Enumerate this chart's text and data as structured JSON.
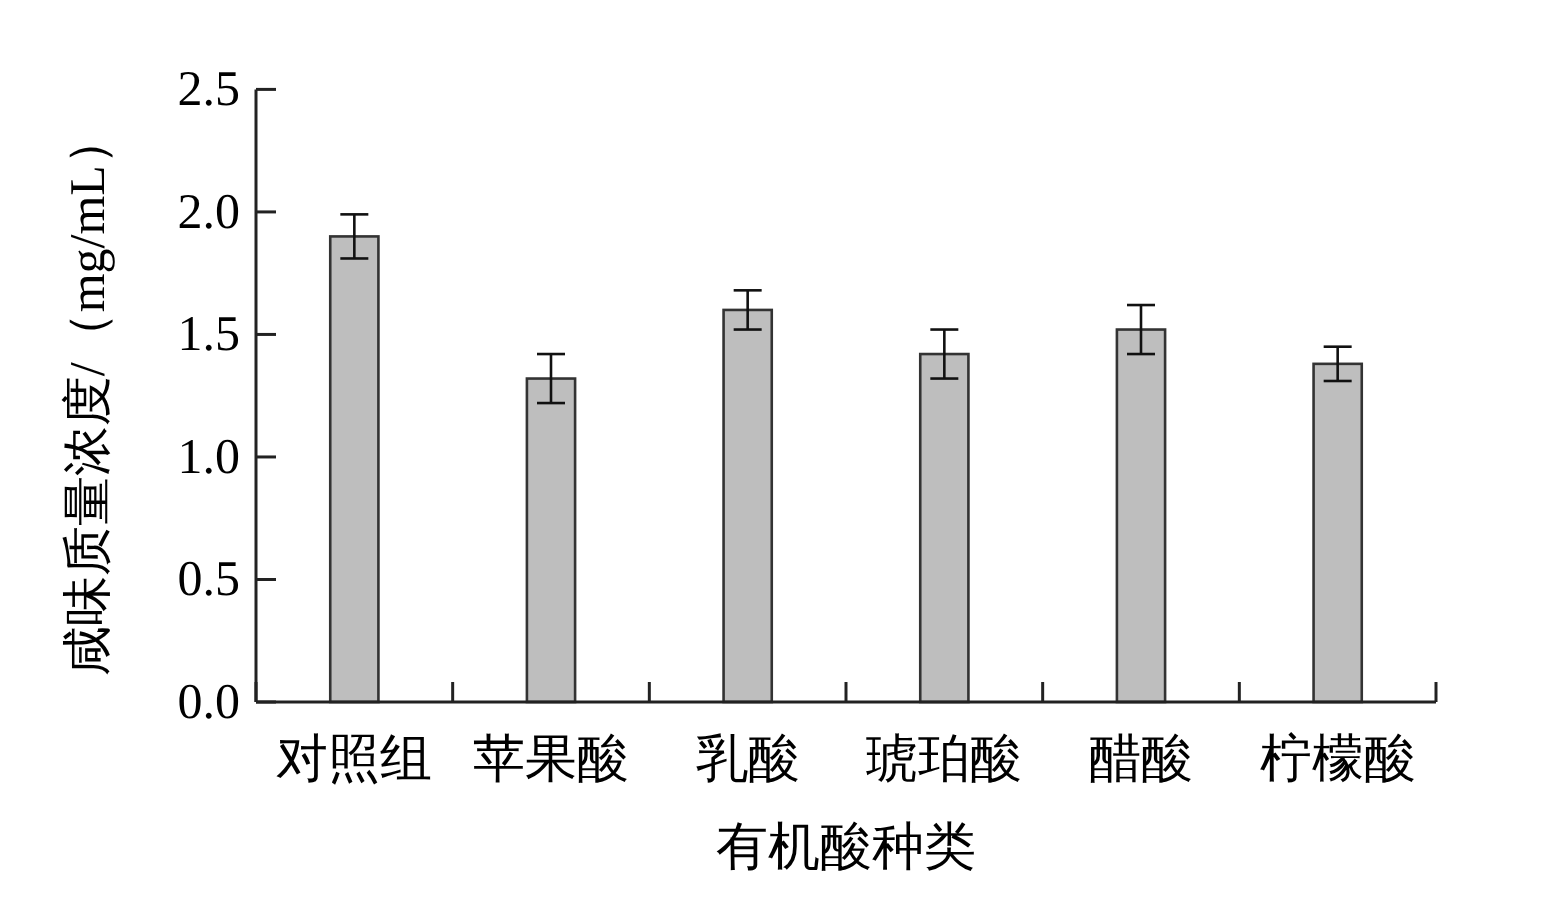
{
  "chart_data": {
    "type": "bar",
    "xlabel": "有机酸种类",
    "ylabel": "咸味质量浓度/（mg/mL）",
    "categories": [
      "对照组",
      "苹果酸",
      "乳酸",
      "琥珀酸",
      "醋酸",
      "柠檬酸"
    ],
    "values": [
      1.9,
      1.32,
      1.6,
      1.42,
      1.52,
      1.38
    ],
    "errors": [
      0.09,
      0.1,
      0.08,
      0.1,
      0.1,
      0.07
    ],
    "color": "#bebebe",
    "ylim": [
      0,
      2.5
    ],
    "yticks": [
      {
        "value": 0,
        "label": "0.0"
      },
      {
        "value": 0.5,
        "label": "0.5"
      },
      {
        "value": 1,
        "label": "1.0"
      },
      {
        "value": 1.5,
        "label": "1.5"
      },
      {
        "value": 2,
        "label": "2.0"
      },
      {
        "value": 2.5,
        "label": "2.5"
      }
    ],
    "grid": false
  }
}
